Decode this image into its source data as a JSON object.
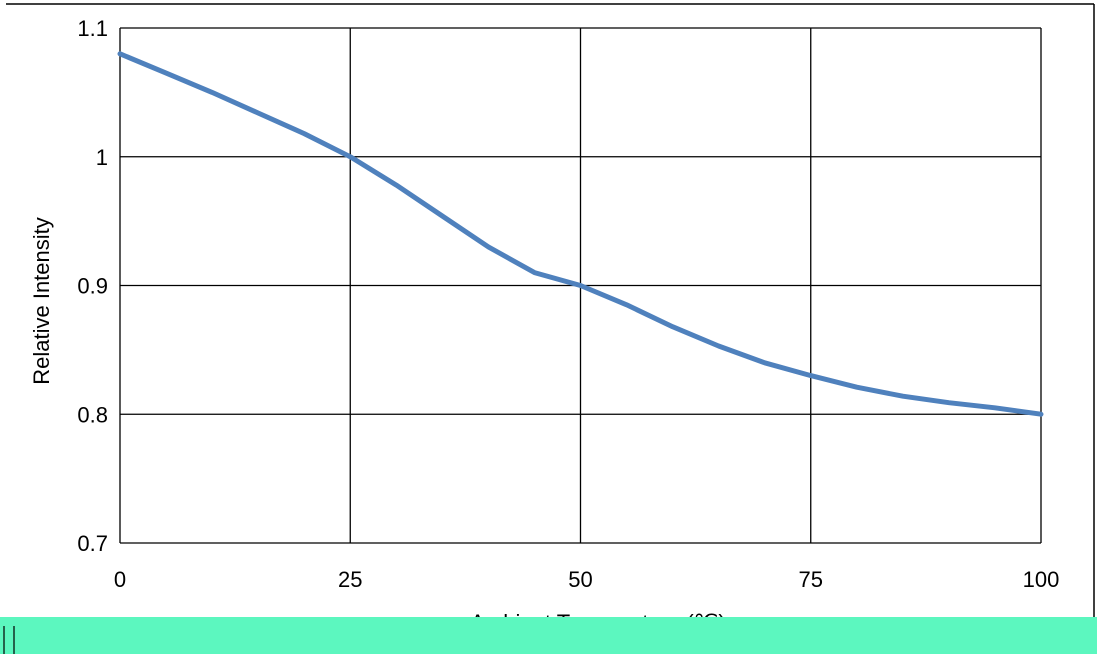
{
  "chart_data": {
    "type": "line",
    "title": "",
    "xlabel": "Ambient Temperature (℃)",
    "ylabel": "Relative Intensity",
    "xlim": [
      0,
      100
    ],
    "ylim": [
      0.7,
      1.1
    ],
    "x_ticks": [
      0,
      25,
      50,
      75,
      100
    ],
    "y_ticks": [
      0.7,
      0.8,
      0.9,
      1.0,
      1.1
    ],
    "x_tick_labels": [
      "0",
      "25",
      "50",
      "75",
      "100"
    ],
    "y_tick_labels": [
      "0.7",
      "0.8",
      "0.9",
      "1",
      "1.1"
    ],
    "grid": true,
    "legend": "none",
    "series": [
      {
        "color": "#4f81bd",
        "x": [
          0,
          5,
          10,
          15,
          20,
          25,
          30,
          35,
          40,
          45,
          50,
          55,
          60,
          65,
          70,
          75,
          80,
          85,
          90,
          95,
          100
        ],
        "y": [
          1.08,
          1.065,
          1.05,
          1.034,
          1.018,
          1.0,
          0.978,
          0.954,
          0.93,
          0.91,
          0.9,
          0.885,
          0.868,
          0.853,
          0.84,
          0.83,
          0.821,
          0.814,
          0.809,
          0.805,
          0.8
        ]
      }
    ]
  },
  "colors": {
    "background": "#ffffff",
    "grid": "#000000",
    "frame": "#000000",
    "overlay_bar": "#5cf7bf"
  }
}
